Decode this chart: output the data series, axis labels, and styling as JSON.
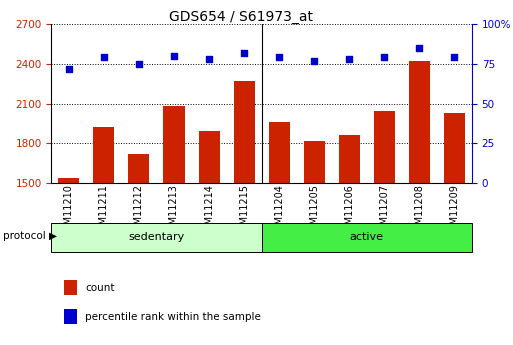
{
  "title": "GDS654 / S61973_at",
  "categories": [
    "GSM11210",
    "GSM11211",
    "GSM11212",
    "GSM11213",
    "GSM11214",
    "GSM11215",
    "GSM11204",
    "GSM11205",
    "GSM11206",
    "GSM11207",
    "GSM11208",
    "GSM11209"
  ],
  "bar_values": [
    1540,
    1920,
    1720,
    2080,
    1890,
    2270,
    1960,
    1815,
    1860,
    2040,
    2420,
    2030
  ],
  "dot_values": [
    72,
    79,
    75,
    80,
    78,
    82,
    79,
    77,
    78,
    79,
    85,
    79
  ],
  "bar_color": "#cc2200",
  "dot_color": "#0000cc",
  "ylim_left": [
    1500,
    2700
  ],
  "ylim_right": [
    0,
    100
  ],
  "yticks_left": [
    1500,
    1800,
    2100,
    2400,
    2700
  ],
  "yticks_right": [
    0,
    25,
    50,
    75,
    100
  ],
  "group1_label": "sedentary",
  "group2_label": "active",
  "group1_indices": [
    0,
    1,
    2,
    3,
    4,
    5
  ],
  "group2_indices": [
    6,
    7,
    8,
    9,
    10,
    11
  ],
  "group1_color": "#ccffcc",
  "group2_color": "#44ee44",
  "protocol_label": "protocol",
  "legend_count": "count",
  "legend_pct": "percentile rank within the sample",
  "background_color": "#ffffff",
  "title_fontsize": 10,
  "tick_fontsize": 7.5,
  "label_fontsize": 7.5
}
